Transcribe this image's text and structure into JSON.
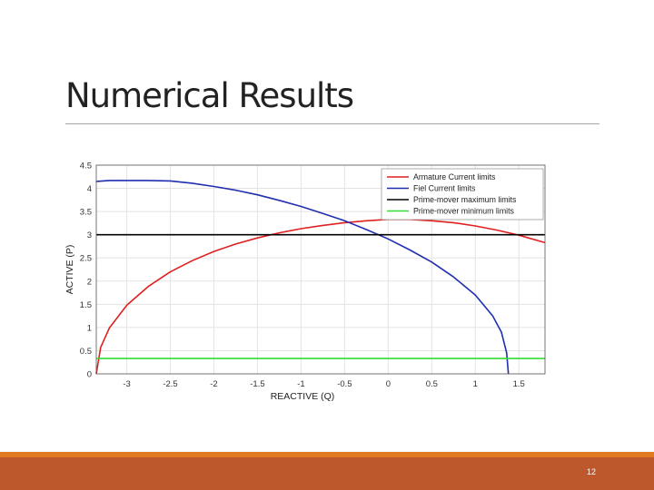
{
  "slide": {
    "title": "Numerical Results",
    "page_number": "12"
  },
  "colors": {
    "footer_orange": "#e07b22",
    "footer_rust": "#bd582c",
    "armature": "#e02020",
    "field": "#1f2fb0",
    "prime_max": "#000000",
    "prime_min": "#33dd33"
  },
  "chart_data": {
    "type": "line",
    "xlabel": "REACTIVE (Q)",
    "ylabel": "ACTIVE (P)",
    "xlim": [
      -3.35,
      1.8
    ],
    "ylim": [
      0,
      4.5
    ],
    "xticks": [
      -3,
      -2.5,
      -2,
      -1.5,
      -1,
      -0.5,
      0,
      0.5,
      1,
      1.5
    ],
    "xtick_labels": [
      "-3",
      "-2.5",
      "-2",
      "-1.5",
      "-1",
      "-0.5",
      "0",
      "0.5",
      "1",
      "1.5"
    ],
    "yticks": [
      0,
      0.5,
      1,
      1.5,
      2,
      2.5,
      3,
      3.5,
      4,
      4.5
    ],
    "ytick_labels": [
      "0",
      "0.5",
      "1",
      "1.5",
      "2",
      "2.5",
      "3",
      "3.5",
      "4",
      "4.5"
    ],
    "grid": true,
    "legend_position": "top-right",
    "series": [
      {
        "name": "Armature Current limits",
        "color": "#e02020",
        "x": [
          -3.35,
          -3.3,
          -3.2,
          -3.0,
          -2.75,
          -2.5,
          -2.25,
          -2.0,
          -1.75,
          -1.5,
          -1.25,
          -1.0,
          -0.75,
          -0.5,
          -0.25,
          0.0,
          0.25,
          0.5,
          0.75,
          1.0,
          1.25,
          1.5,
          1.8
        ],
        "y": [
          0.0,
          0.57,
          0.99,
          1.48,
          1.89,
          2.2,
          2.44,
          2.64,
          2.8,
          2.93,
          3.04,
          3.13,
          3.2,
          3.26,
          3.3,
          3.33,
          3.33,
          3.3,
          3.26,
          3.19,
          3.1,
          2.99,
          2.83
        ]
      },
      {
        "name": "Fiel Current limits",
        "color": "#1f2fb0",
        "x": [
          -3.35,
          -3.2,
          -3.0,
          -2.75,
          -2.5,
          -2.25,
          -2.0,
          -1.75,
          -1.5,
          -1.25,
          -1.0,
          -0.75,
          -0.5,
          -0.25,
          0.0,
          0.25,
          0.5,
          0.75,
          1.0,
          1.2,
          1.3,
          1.36,
          1.38
        ],
        "y": [
          4.15,
          4.17,
          4.17,
          4.17,
          4.16,
          4.11,
          4.04,
          3.96,
          3.86,
          3.74,
          3.61,
          3.46,
          3.3,
          3.11,
          2.91,
          2.67,
          2.41,
          2.09,
          1.7,
          1.25,
          0.9,
          0.45,
          0.0
        ]
      },
      {
        "name": "Prime-mover maximum limits",
        "color": "#000000",
        "x": [
          -3.35,
          1.8
        ],
        "y": [
          3.0,
          3.0
        ]
      },
      {
        "name": "Prime-mover minimum limits",
        "color": "#33dd33",
        "x": [
          -3.35,
          1.8
        ],
        "y": [
          0.33,
          0.33
        ]
      }
    ]
  }
}
